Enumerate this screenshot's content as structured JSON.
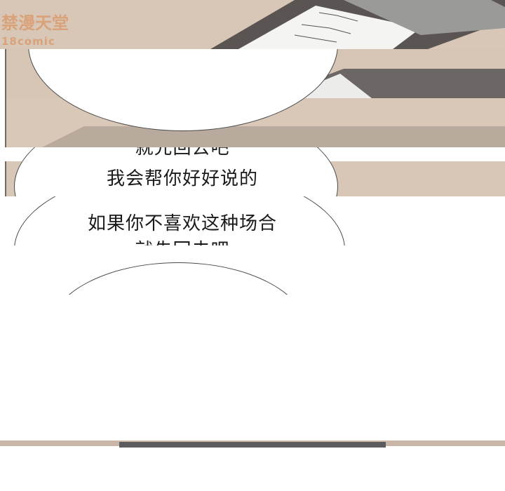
{
  "watermark": {
    "title": "禁漫天堂",
    "sub": "18comic"
  },
  "panel3": {
    "line_top_clipped": "就先回去吧",
    "line_1": "我会帮你好好说的"
  },
  "panel4": {
    "line_1": "如果你不喜欢这种场合",
    "line_bottom_clipped": "就先回去吧"
  }
}
